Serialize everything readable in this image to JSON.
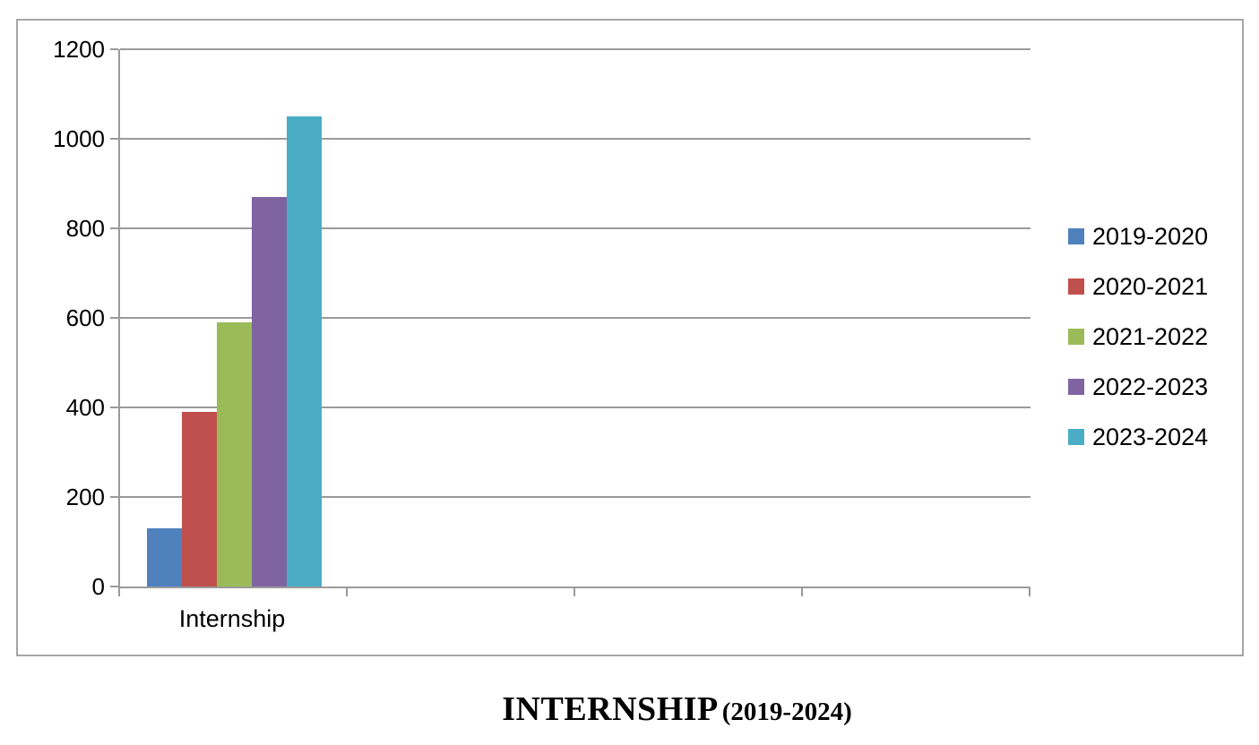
{
  "title": {
    "main": "INTERNSHIP",
    "range": "(2019-2024)"
  },
  "chart_data": {
    "type": "bar",
    "title": "INTERNSHIP (2019-2024)",
    "categories": [
      "Internship"
    ],
    "series": [
      {
        "name": "2019-2020",
        "value": 130,
        "color": "#4F81BD"
      },
      {
        "name": "2020-2021",
        "value": 390,
        "color": "#C0504D"
      },
      {
        "name": "2021-2022",
        "value": 590,
        "color": "#9BBB59"
      },
      {
        "name": "2022-2023",
        "value": 870,
        "color": "#8064A2"
      },
      {
        "name": "2023-2024",
        "value": 1050,
        "color": "#4BACC6"
      }
    ],
    "xlabel": "",
    "ylabel": "",
    "ylim": [
      0,
      1200
    ],
    "ytick_step": 200,
    "ytick_labels": [
      "0",
      "200",
      "400",
      "600",
      "800",
      "1000",
      "1200"
    ],
    "grid": true,
    "legend_position": "right",
    "x_slots": 4
  },
  "colors": {
    "axis_gray": "#9a9a9a",
    "border_gray": "#a6a6a6",
    "text": "#000000"
  }
}
